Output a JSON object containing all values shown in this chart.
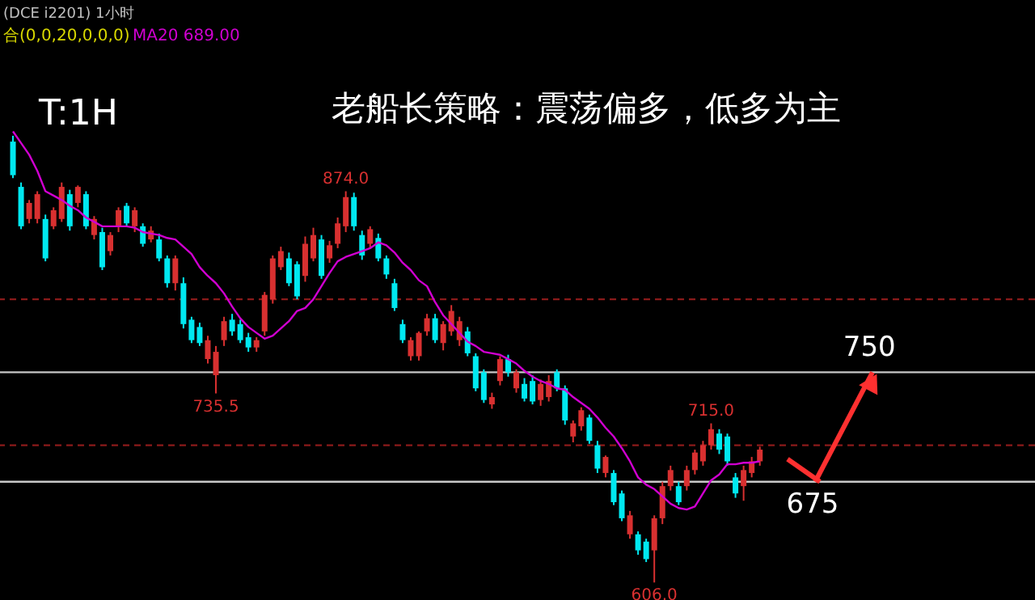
{
  "chart_data": {
    "type": "candlestick",
    "title": "老船长策略：震荡偏多，低多为主",
    "subtitle": "(DCE i2201)  1小时",
    "categories": [
      null,
      null,
      null,
      null,
      null,
      null,
      null,
      null,
      null,
      null,
      null,
      null,
      null,
      null,
      null,
      null,
      null,
      null,
      null,
      null,
      null,
      null,
      null,
      null,
      null,
      null,
      null,
      null,
      null,
      null,
      null,
      null,
      null,
      null,
      null,
      null,
      null,
      null,
      null,
      null,
      null,
      null,
      null,
      null,
      null,
      null,
      null,
      null,
      null,
      null,
      null,
      null,
      null,
      null,
      null,
      null,
      null,
      null,
      null,
      null,
      null,
      null,
      null,
      null,
      null,
      null,
      null,
      null,
      null,
      null,
      null,
      null,
      null,
      null,
      null,
      null,
      null,
      null,
      null,
      null,
      null,
      null,
      null,
      null,
      null,
      null,
      null,
      null,
      null,
      null,
      null,
      null,
      null
    ],
    "ylim": [
      594,
      1005
    ],
    "series": [
      {
        "colors": [
          "#00e8f0",
          "#00e8f0",
          "#d83030",
          "#d83030",
          "#00e8f0",
          "#d83030",
          "#d83030",
          "#00e8f0",
          "#d83030",
          "#00e8f0",
          "#d83030",
          "#00e8f0",
          "#d83030",
          "#d83030",
          "#00e8f0",
          "#d83030",
          "#00e8f0",
          "#d83030",
          "#00e8f0",
          "#00e8f0",
          "#d83030",
          "#00e8f0",
          "#00e8f0",
          "#00e8f0",
          "#d83030",
          "#d83030",
          "#d83030",
          "#00e8f0",
          "#00e8f0",
          "#00e8f0",
          "#d83030",
          "#d83030",
          "#d83030",
          "#d83030",
          "#00e8f0",
          "#00e8f0",
          "#d83030",
          "#d83030",
          "#00e8f0",
          "#d83030",
          "#d83030",
          "#d83030",
          "#00e8f0",
          "#00e8f0",
          "#d83030",
          "#00e8f0",
          "#00e8f0",
          "#00e8f0",
          "#00e8f0",
          "#d83030",
          "#d83030",
          "#d83030",
          "#00e8f0",
          "#d83030",
          "#d83030",
          "#d83030",
          "#00e8f0",
          "#00e8f0",
          "#00e8f0",
          "#d83030",
          "#d83030",
          "#00e8f0",
          "#d83030",
          "#00e8f0",
          "#00e8f0",
          "#d83030",
          "#d83030",
          "#00e8f0",
          "#00e8f0",
          "#d83030",
          "#d83030",
          "#00e8f0",
          "#00e8f0",
          "#d83030",
          "#00e8f0",
          "#00e8f0",
          "#d83030",
          "#00e8f0",
          "#00e8f0",
          "#d83030",
          "#d83030",
          "#d83030",
          "#00e8f0",
          "#d83030",
          "#d83030",
          "#d83030",
          "#d83030",
          "#00e8f0",
          "#00e8f0",
          "#00e8f0",
          "#d83030",
          "#d83030",
          "#d83030"
        ],
        "ohlc": [
          [
            908,
            912,
            883,
            885
          ],
          [
            877,
            880,
            848,
            850
          ],
          [
            855,
            868,
            852,
            866
          ],
          [
            855,
            874,
            852,
            872
          ],
          [
            855,
            858,
            826,
            828
          ],
          [
            850,
            863,
            848,
            861
          ],
          [
            855,
            880,
            853,
            877
          ],
          [
            872,
            875,
            847,
            850
          ],
          [
            866,
            878,
            863,
            877
          ],
          [
            872,
            874,
            848,
            850
          ],
          [
            844,
            857,
            841,
            855
          ],
          [
            846,
            849,
            820,
            822
          ],
          [
            833,
            846,
            830,
            844
          ],
          [
            850,
            863,
            846,
            861
          ],
          [
            864,
            866,
            850,
            852
          ],
          [
            850,
            863,
            846,
            861
          ],
          [
            850,
            852,
            836,
            838
          ],
          [
            841,
            850,
            839,
            847
          ],
          [
            841,
            845,
            826,
            828
          ],
          [
            828,
            830,
            808,
            811
          ],
          [
            811,
            830,
            806,
            828
          ],
          [
            811,
            815,
            780,
            783
          ],
          [
            786,
            788,
            770,
            772
          ],
          [
            781,
            784,
            768,
            770
          ],
          [
            759,
            775,
            756,
            772
          ],
          [
            748,
            768,
            735.5,
            764
          ],
          [
            772,
            788,
            768,
            785
          ],
          [
            786,
            790,
            775,
            778
          ],
          [
            783,
            786,
            770,
            772
          ],
          [
            774,
            777,
            764,
            767
          ],
          [
            767,
            774,
            764,
            772
          ],
          [
            778,
            805,
            775,
            803
          ],
          [
            800,
            830,
            797,
            828
          ],
          [
            822,
            836,
            820,
            833
          ],
          [
            828,
            832,
            809,
            811
          ],
          [
            824,
            826,
            800,
            802
          ],
          [
            816,
            843,
            812,
            838
          ],
          [
            828,
            849,
            826,
            844
          ],
          [
            841,
            844,
            814,
            816
          ],
          [
            828,
            840,
            825,
            837
          ],
          [
            838,
            856,
            835,
            852
          ],
          [
            850,
            874,
            846,
            870
          ],
          [
            870,
            873,
            847,
            850
          ],
          [
            844,
            847,
            827,
            830
          ],
          [
            838,
            850,
            835,
            848
          ],
          [
            842,
            845,
            826,
            828
          ],
          [
            828,
            830,
            814,
            817
          ],
          [
            811,
            814,
            792,
            794
          ],
          [
            783,
            786,
            770,
            772
          ],
          [
            761,
            774,
            758,
            772
          ],
          [
            761,
            778,
            758,
            777
          ],
          [
            778,
            790,
            775,
            787
          ],
          [
            787,
            790,
            770,
            772
          ],
          [
            770,
            785,
            765,
            783
          ],
          [
            778,
            796,
            775,
            792
          ],
          [
            772,
            788,
            768,
            785
          ],
          [
            778,
            781,
            761,
            763
          ],
          [
            761,
            763,
            737,
            739
          ],
          [
            750,
            752,
            729,
            731
          ],
          [
            728,
            736,
            725,
            733
          ],
          [
            744,
            761,
            741,
            759
          ],
          [
            759,
            762,
            747,
            750
          ],
          [
            739,
            752,
            736,
            750
          ],
          [
            742,
            746,
            730,
            732
          ],
          [
            744,
            748,
            728,
            730
          ],
          [
            731,
            745,
            727,
            742
          ],
          [
            733,
            748,
            730,
            744
          ],
          [
            750,
            752,
            737,
            739
          ],
          [
            739,
            741,
            714,
            717
          ],
          [
            706,
            717,
            702,
            715
          ],
          [
            713,
            726,
            710,
            724
          ],
          [
            719,
            721,
            701,
            703
          ],
          [
            700,
            703,
            681,
            684
          ],
          [
            681,
            693,
            678,
            692
          ],
          [
            681,
            683,
            659,
            661
          ],
          [
            667,
            669,
            648,
            650
          ],
          [
            639,
            655,
            636,
            652
          ],
          [
            639,
            641,
            625,
            628
          ],
          [
            634,
            636,
            620,
            622
          ],
          [
            628,
            652,
            606,
            650
          ],
          [
            650,
            675,
            646,
            672
          ],
          [
            672,
            686,
            669,
            683
          ],
          [
            672,
            675,
            659,
            661
          ],
          [
            672,
            686,
            669,
            683
          ],
          [
            683,
            697,
            680,
            695
          ],
          [
            689,
            703,
            686,
            700
          ],
          [
            700,
            715,
            697,
            711
          ],
          [
            708,
            711,
            694,
            697
          ],
          [
            706,
            708,
            686,
            689
          ],
          [
            678,
            681,
            664,
            667
          ],
          [
            672,
            686,
            662,
            683
          ],
          [
            681,
            692,
            678,
            689
          ],
          [
            689,
            699,
            686,
            697
          ]
        ]
      },
      {
        "type": "line",
        "name": "MA20 689.00",
        "color": "#d000d0",
        "values": [
          915,
          907,
          899,
          888,
          874,
          871,
          868,
          864,
          861,
          856,
          853,
          850,
          850,
          850,
          850,
          849,
          846,
          845,
          844,
          842,
          841,
          836,
          831,
          822,
          816,
          811,
          804,
          795,
          787,
          781,
          777,
          773,
          775,
          780,
          785,
          792,
          794,
          800,
          809,
          818,
          826,
          829,
          831,
          833,
          835,
          839,
          837,
          832,
          825,
          820,
          813,
          809,
          798,
          789,
          783,
          777,
          771,
          768,
          764,
          763,
          762,
          759,
          756,
          751,
          747,
          744,
          742,
          739,
          738,
          733,
          729,
          725,
          719,
          712,
          706,
          698,
          689,
          678,
          673,
          670,
          665,
          660,
          657,
          656,
          658,
          667,
          676,
          680,
          687,
          687,
          688,
          688,
          689
        ]
      }
    ],
    "ref_lines": [
      {
        "axis": "y",
        "value": 750,
        "label": "750",
        "color": "#c8c8c8",
        "line_style": "solid"
      },
      {
        "axis": "y",
        "value": 675,
        "label": "675",
        "color": "#c8c8c8",
        "line_style": "solid"
      },
      {
        "axis": "y",
        "value": 800,
        "label": null,
        "color": "#8b1a1a",
        "line_style": "dashed"
      },
      {
        "axis": "y",
        "value": 700,
        "label": null,
        "color": "#8b1a1a",
        "line_style": "dashed"
      }
    ],
    "annotations": [
      "T:1H",
      "合(0,0,20,0,0,0)",
      {
        "text": "874.0",
        "y": 874
      },
      {
        "text": "735.5",
        "y": 735.5
      },
      {
        "text": "715.0",
        "y": 715
      },
      {
        "text": "606.0",
        "y": 606
      }
    ]
  }
}
